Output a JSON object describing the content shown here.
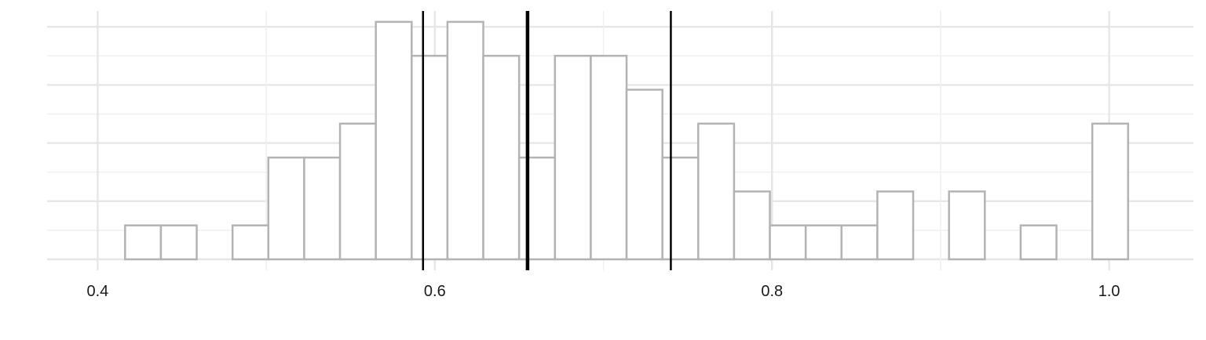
{
  "chart_data": {
    "type": "histogram",
    "title": "",
    "xlabel": "",
    "ylabel": "",
    "bin_width": 0.02125,
    "bins": [
      {
        "x0": 0.41625,
        "x1": 0.4375,
        "count": 1
      },
      {
        "x0": 0.4375,
        "x1": 0.45875,
        "count": 1
      },
      {
        "x0": 0.45875,
        "x1": 0.48,
        "count": 0
      },
      {
        "x0": 0.48,
        "x1": 0.50125,
        "count": 1
      },
      {
        "x0": 0.50125,
        "x1": 0.5225,
        "count": 3
      },
      {
        "x0": 0.5225,
        "x1": 0.54375,
        "count": 3
      },
      {
        "x0": 0.54375,
        "x1": 0.565,
        "count": 4
      },
      {
        "x0": 0.565,
        "x1": 0.58625,
        "count": 7
      },
      {
        "x0": 0.58625,
        "x1": 0.6075,
        "count": 6
      },
      {
        "x0": 0.6075,
        "x1": 0.62875,
        "count": 7
      },
      {
        "x0": 0.62875,
        "x1": 0.65,
        "count": 6
      },
      {
        "x0": 0.65,
        "x1": 0.67125,
        "count": 3
      },
      {
        "x0": 0.67125,
        "x1": 0.6925,
        "count": 6
      },
      {
        "x0": 0.6925,
        "x1": 0.71375,
        "count": 6
      },
      {
        "x0": 0.71375,
        "x1": 0.735,
        "count": 5
      },
      {
        "x0": 0.735,
        "x1": 0.75625,
        "count": 3
      },
      {
        "x0": 0.75625,
        "x1": 0.7775,
        "count": 4
      },
      {
        "x0": 0.7775,
        "x1": 0.79875,
        "count": 2
      },
      {
        "x0": 0.79875,
        "x1": 0.82,
        "count": 1
      },
      {
        "x0": 0.82,
        "x1": 0.84125,
        "count": 1
      },
      {
        "x0": 0.84125,
        "x1": 0.8625,
        "count": 1
      },
      {
        "x0": 0.8625,
        "x1": 0.88375,
        "count": 2
      },
      {
        "x0": 0.88375,
        "x1": 0.905,
        "count": 0
      },
      {
        "x0": 0.905,
        "x1": 0.92625,
        "count": 2
      },
      {
        "x0": 0.92625,
        "x1": 0.9475,
        "count": 0
      },
      {
        "x0": 0.9475,
        "x1": 0.96875,
        "count": 1
      },
      {
        "x0": 0.96875,
        "x1": 0.99,
        "count": 0
      },
      {
        "x0": 0.99,
        "x1": 1.01125,
        "count": 4
      }
    ],
    "vlines": [
      {
        "x": 0.593,
        "weight": "normal"
      },
      {
        "x": 0.655,
        "weight": "bold"
      },
      {
        "x": 0.74,
        "weight": "normal"
      }
    ],
    "xlim": [
      0.37,
      1.05
    ],
    "ylim": [
      0,
      7.5
    ],
    "x_ticks": [
      0.4,
      0.6,
      0.8,
      1.0
    ],
    "x_tick_labels": [
      "0.4",
      "0.6",
      "0.8",
      "1.0"
    ],
    "y_axis_labels_shown": false,
    "grid": true,
    "colors": {
      "bar_fill": "#ffffff",
      "bar_outline": "#b3b3b3",
      "grid_major": "#e6e6e6",
      "grid_minor": "#f0f0f0",
      "vline": "#000000"
    }
  }
}
